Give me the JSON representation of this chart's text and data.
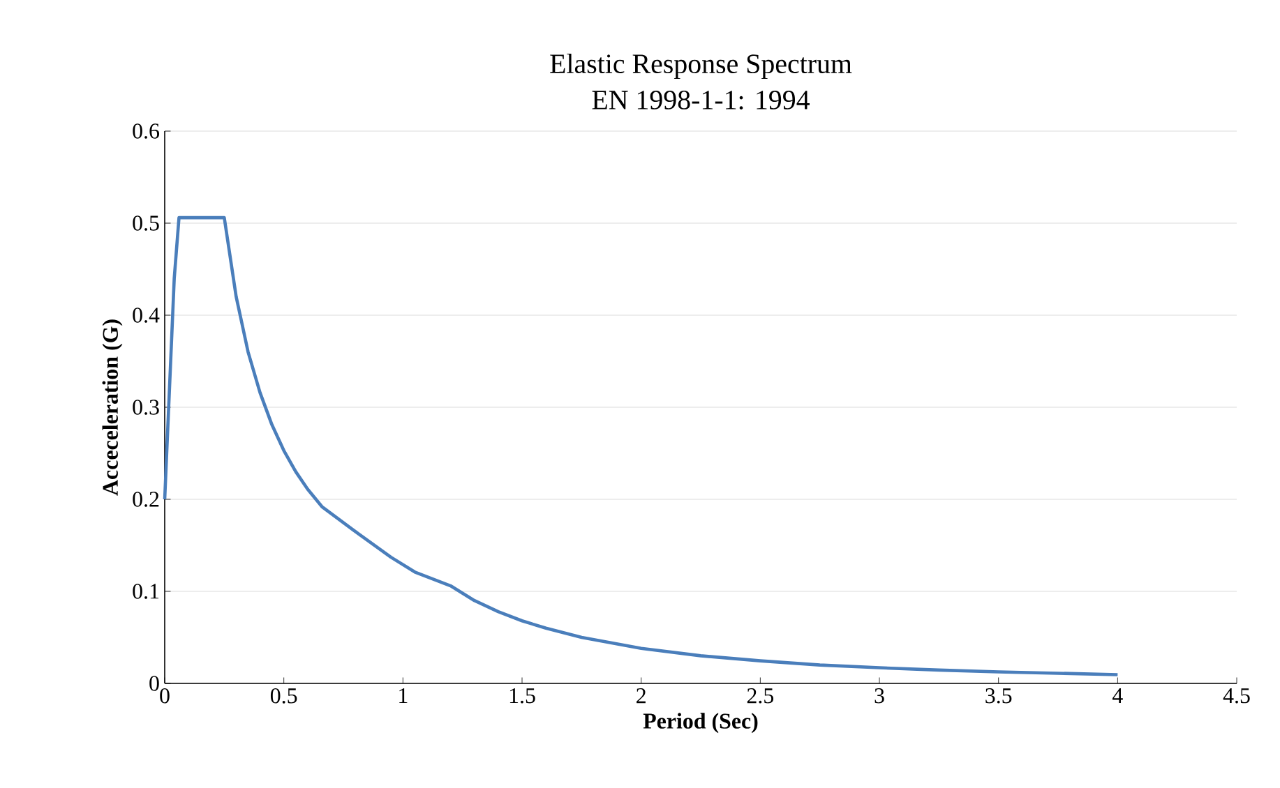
{
  "chart_data": {
    "type": "line",
    "title": "Elastic Response Spectrum",
    "subtitle": "EN 1998-1-1: 1994",
    "xlabel": "Period (Sec)",
    "ylabel": "Acceceleration (G)",
    "x": [
      0,
      0.04,
      0.06,
      0.1,
      0.15,
      0.2,
      0.25,
      0.3,
      0.35,
      0.4,
      0.45,
      0.5,
      0.55,
      0.6,
      0.66,
      0.8,
      0.95,
      1.05,
      1.2,
      1.3,
      1.4,
      1.5,
      1.6,
      1.75,
      2,
      2.25,
      2.5,
      2.75,
      3,
      3.25,
      3.5,
      3.75,
      4
    ],
    "series": [
      {
        "color": "#4a7ebb",
        "values": [
          0.2,
          0.44,
          0.506,
          0.506,
          0.506,
          0.506,
          0.506,
          0.42,
          0.36,
          0.316,
          0.281,
          0.253,
          0.23,
          0.211,
          0.192,
          0.165,
          0.137,
          0.121,
          0.106,
          0.09,
          0.078,
          0.068,
          0.06,
          0.05,
          0.038,
          0.03,
          0.0245,
          0.02,
          0.017,
          0.0145,
          0.0125,
          0.011,
          0.0095
        ]
      }
    ],
    "xlim": [
      0,
      4.5
    ],
    "ylim": [
      0,
      0.6
    ],
    "xticks": [
      0,
      0.5,
      1,
      1.5,
      2,
      2.5,
      3,
      3.5,
      4,
      4.5
    ],
    "yticks": [
      0,
      0.1,
      0.2,
      0.3,
      0.4,
      0.5,
      0.6
    ],
    "grid": "y"
  }
}
